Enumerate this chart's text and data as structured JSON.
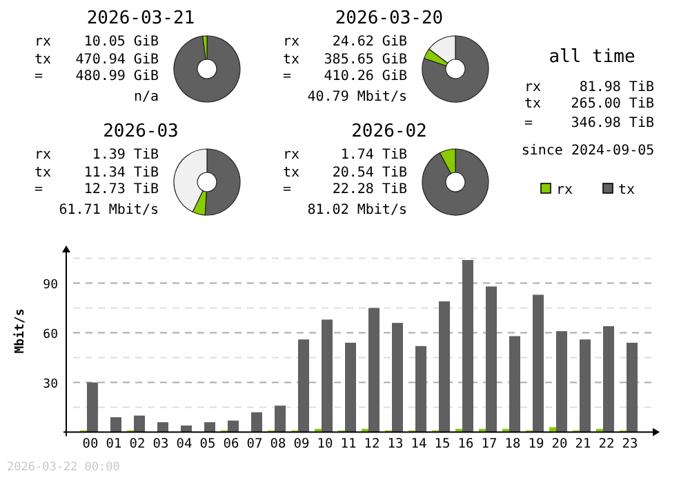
{
  "chart_data": [
    {
      "type": "donut",
      "title": "2026-03-21",
      "categories": [
        null,
        null
      ],
      "values": [
        97.9,
        2.1
      ],
      "colors": [
        "#606060",
        "#88cc00"
      ],
      "annotations": [
        "rx 10.05 GiB",
        "tx 470.94 GiB",
        "= 480.99 GiB",
        "n/a"
      ]
    },
    {
      "type": "donut",
      "title": "2026-03-20",
      "categories": [
        null,
        null,
        null
      ],
      "values": [
        80.2,
        5.1,
        14.7
      ],
      "colors": [
        "#606060",
        "#88cc00",
        "#f0f0f0"
      ],
      "annotations": [
        "rx 24.62 GiB",
        "tx 385.65 GiB",
        "= 410.26 GiB",
        "40.79 Mbit/s"
      ]
    },
    {
      "type": "donut",
      "title": "2026-03",
      "categories": [
        null,
        null,
        null
      ],
      "values": [
        50.9,
        6.2,
        42.9
      ],
      "colors": [
        "#606060",
        "#88cc00",
        "#f0f0f0"
      ],
      "annotations": [
        "rx 1.39 TiB",
        "tx 11.34 TiB",
        "= 12.73 TiB",
        "61.71 Mbit/s"
      ]
    },
    {
      "type": "donut",
      "title": "2026-02",
      "categories": [
        null,
        null
      ],
      "values": [
        92.2,
        7.8
      ],
      "colors": [
        "#606060",
        "#88cc00"
      ],
      "annotations": [
        "rx 1.74 TiB",
        "tx 20.54 TiB",
        "= 22.28 TiB",
        "81.02 Mbit/s"
      ]
    },
    {
      "type": "other",
      "title": "all time",
      "annotations": [
        "rx 81.98 TiB",
        "tx 265.00 TiB",
        "= 346.98 TiB",
        "since 2024-09-05"
      ]
    },
    {
      "type": "bar",
      "ylabel": "Mbit/s",
      "categories": [
        "00",
        "01",
        "02",
        "03",
        "04",
        "05",
        "06",
        "07",
        "08",
        "09",
        "10",
        "11",
        "12",
        "13",
        "14",
        "15",
        "16",
        "17",
        "18",
        "19",
        "20",
        "21",
        "22",
        "23"
      ],
      "series": [
        {
          "name": "rx",
          "color": "#88cc00",
          "values": [
            1,
            0,
            1,
            0,
            0,
            0,
            1,
            0,
            1,
            1,
            2,
            1,
            2,
            1,
            1,
            1,
            2,
            2,
            2,
            1,
            3,
            1,
            2,
            1
          ]
        },
        {
          "name": "tx",
          "color": "#606060",
          "values": [
            30,
            9,
            10,
            6,
            4,
            6,
            7,
            12,
            16,
            56,
            68,
            54,
            75,
            66,
            52,
            79,
            104,
            88,
            58,
            83,
            61,
            56,
            64,
            54
          ]
        }
      ],
      "ylim": [
        0,
        110
      ],
      "yticks": [
        {
          "value": 15,
          "label": null
        },
        30,
        {
          "value": 45,
          "label": null
        },
        60,
        {
          "value": 75,
          "label": null
        },
        90,
        {
          "value": 105,
          "label": null
        }
      ],
      "grid": "y",
      "legend": "top right",
      "annotations": [
        "2026-03-22 00:00"
      ]
    }
  ]
}
